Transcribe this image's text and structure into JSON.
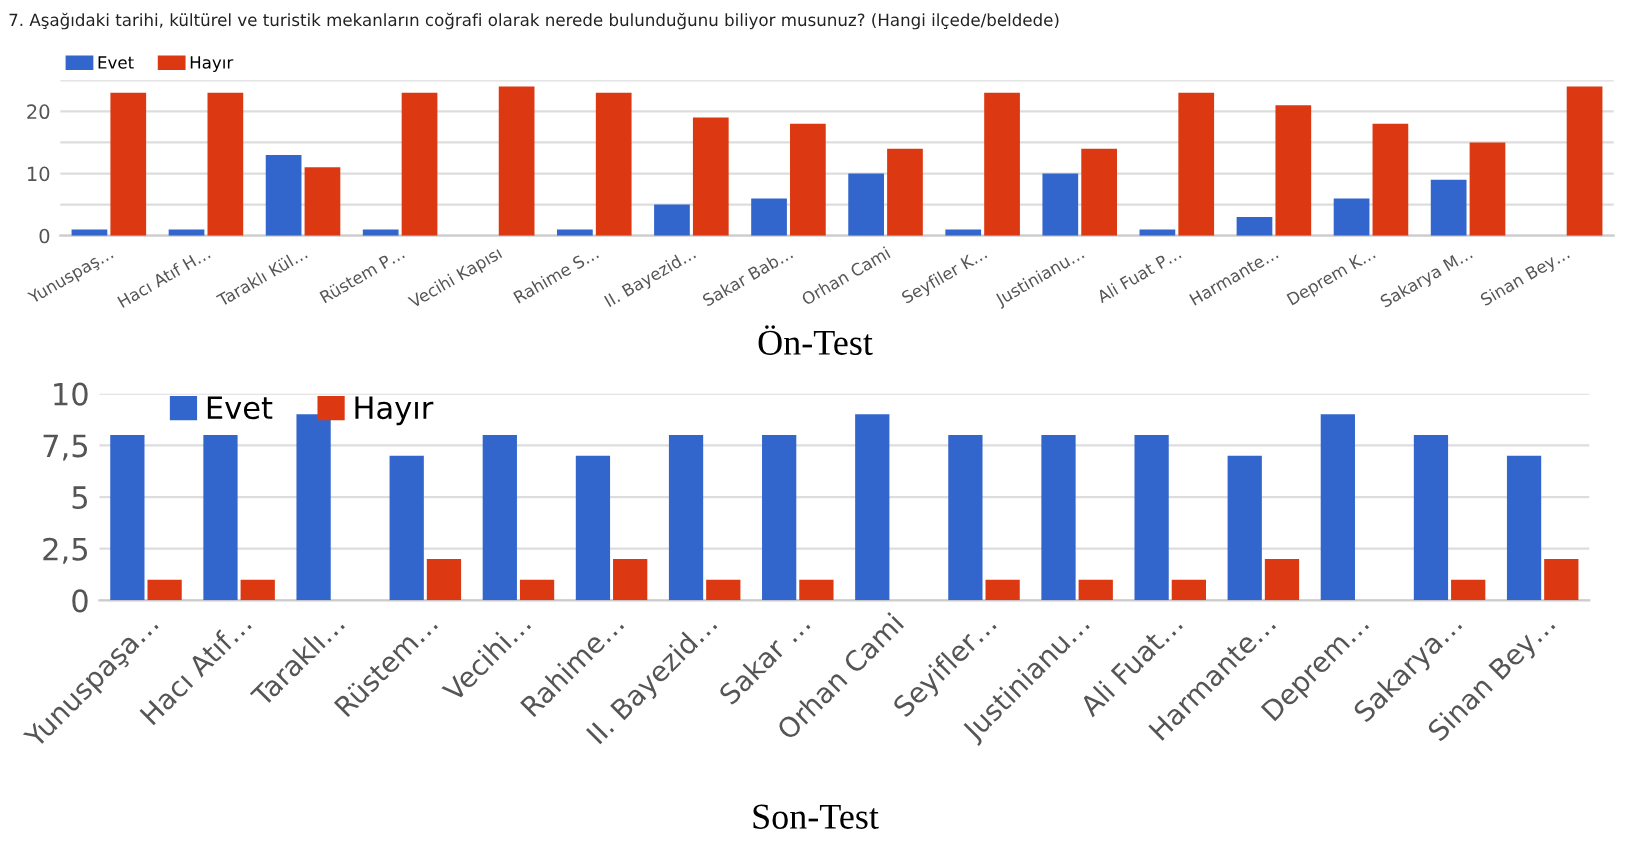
{
  "chart_data": [
    {
      "type": "bar",
      "title": "7. Aşağıdaki tarihi, kültürel ve turistik mekanların coğrafi olarak nerede bulunduğunu biliyor musunuz? (Hangi ilçede/beldede)",
      "categories": [
        "Yunuspaş…",
        "Hacı Atıf H…",
        "Taraklı Kül…",
        "Rüstem P…",
        "Vecihi Kapısı",
        "Rahime S…",
        "II. Bayezid…",
        "Sakar Bab…",
        "Orhan Cami",
        "Seyfiler K…",
        "Justinianu…",
        "Ali Fuat P…",
        "Harmante…",
        "Deprem K…",
        "Sakarya M…",
        "Sinan Bey…"
      ],
      "series": [
        {
          "name": "Evet",
          "color": "#3366cc",
          "values": [
            1,
            1,
            13,
            1,
            0,
            1,
            5,
            6,
            10,
            1,
            10,
            1,
            3,
            6,
            9,
            0
          ]
        },
        {
          "name": "Hayır",
          "color": "#dc3912",
          "values": [
            23,
            23,
            11,
            23,
            24,
            23,
            19,
            18,
            14,
            23,
            14,
            23,
            21,
            18,
            15,
            24
          ]
        }
      ],
      "ylim": [
        0,
        25
      ],
      "yticks": [
        0,
        {
          "value": 5,
          "label": null
        },
        10,
        {
          "value": 15,
          "label": null
        },
        20,
        {
          "value": 25,
          "label": null
        }
      ],
      "grid": "y",
      "legend": "top left",
      "annotations": [
        "Ön-Test"
      ]
    },
    {
      "type": "bar",
      "categories": [
        "Yunuspaşa…",
        "Hacı Atıf…",
        "Taraklı…",
        "Rüstem…",
        "Vecihi…",
        "Rahime…",
        "II. Bayezid…",
        "Sakar …",
        "Orhan Cami",
        "Seyifler…",
        "Justinianu…",
        "Ali Fuat…",
        "Harmante…",
        "Deprem…",
        "Sakarya…",
        "Sinan Bey…"
      ],
      "series": [
        {
          "name": "Evet",
          "color": "#3366cc",
          "values": [
            8,
            8,
            9,
            7,
            8,
            7,
            8,
            8,
            9,
            8,
            8,
            8,
            7,
            9,
            8,
            7
          ]
        },
        {
          "name": "Hayır",
          "color": "#dc3912",
          "values": [
            1,
            1,
            0,
            2,
            1,
            2,
            1,
            1,
            0,
            1,
            1,
            1,
            2,
            0,
            1,
            2
          ]
        }
      ],
      "ylim": [
        0,
        10
      ],
      "yticks": [
        0,
        {
          "value": 2.5,
          "label": "2,5"
        },
        5,
        {
          "value": 7.5,
          "label": "7,5"
        },
        10
      ],
      "grid": "y",
      "legend": "top left",
      "annotations": [
        "Son-Test"
      ]
    }
  ]
}
